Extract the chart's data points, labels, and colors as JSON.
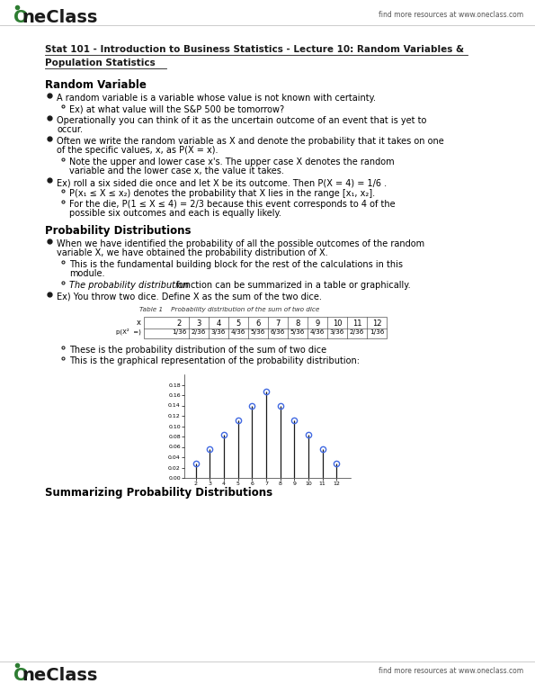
{
  "page_bg": "#ffffff",
  "header_logo_color": "#2e7d32",
  "header_right_text": "find more resources at www.oneclass.com",
  "footer_logo_color": "#2e7d32",
  "footer_right_text": "find more resources at www.oneclass.com",
  "title_line1": "Stat 101 - Introduction to Business Statistics - Lecture 10: Random Variables &",
  "title_line2": "Population Statistics",
  "section1_header": "Random Variable",
  "section2_header": "Probability Distributions",
  "section3_header": "Summarizing Probability Distributions",
  "bullet1": "A random variable is a variable whose value is not known with certainty.",
  "bullet1_sub1": "Ex) at what value will the S&P 500 be tomorrow?",
  "bullet4": "Ex) roll a six sided die once and let X be its outcome. Then P(X = 4) = 1/6 .",
  "bullet4_sub1": "P(x₁ ≤ X ≤ x₂) denotes the probability that X lies in the range [x₁, x₂].",
  "bullet6": "Ex) You throw two dice. Define X as the sum of the two dice.",
  "bullet6_sub1": "These is the probability distribution of the sum of two dice",
  "bullet6_sub2": "This is the graphical representation of the probability distribution:",
  "table_title": "Table 1    Probability distribution of the sum of two dice",
  "table_x_values": [
    2,
    3,
    4,
    5,
    6,
    7,
    8,
    9,
    10,
    11,
    12
  ],
  "table_p_values": [
    "1/36",
    "2/36",
    "3/36",
    "4/36",
    "5/36",
    "6/36",
    "5/36",
    "4/36",
    "3/36",
    "2/36",
    "1/36"
  ],
  "dice_x": [
    2,
    3,
    4,
    5,
    6,
    7,
    8,
    9,
    10,
    11,
    12
  ],
  "dice_p": [
    0.0278,
    0.0556,
    0.0833,
    0.1111,
    0.1389,
    0.1667,
    0.1389,
    0.1111,
    0.0833,
    0.0556,
    0.0278
  ],
  "plot_marker_color": "#4169e1",
  "plot_line_color": "#1a1a1a",
  "plot_bg": "#ffffff"
}
